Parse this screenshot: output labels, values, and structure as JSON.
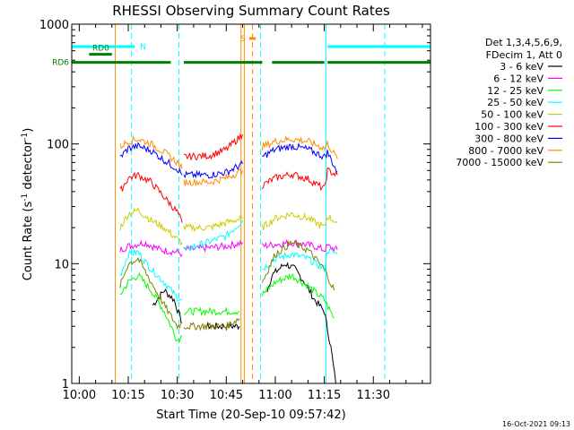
{
  "chart_data": {
    "type": "line",
    "title": "RHESSI Observing Summary Count Rates",
    "xlabel": "Start Time (20-Sep-10 09:57:42)",
    "ylabel": "Count Rate (s",
    "ylabel_sup": "-1",
    "ylabel_tail": " detector",
    "ylabel_sup2": "-1",
    "ylabel_close": ")",
    "yscale": "log",
    "ylim": [
      1,
      1000
    ],
    "xlim_minutes": [
      -2.3,
      107.5
    ],
    "x_ticks": [
      {
        "label": "10:00",
        "minute": 0
      },
      {
        "label": "10:15",
        "minute": 15
      },
      {
        "label": "10:30",
        "minute": 30
      },
      {
        "label": "10:45",
        "minute": 45
      },
      {
        "label": "11:00",
        "minute": 60
      },
      {
        "label": "11:15",
        "minute": 75
      },
      {
        "label": "11:30",
        "minute": 90
      }
    ],
    "y_ticks": [
      {
        "label": "1",
        "value": 1
      },
      {
        "label": "10",
        "value": 10
      },
      {
        "label": "100",
        "value": 100
      },
      {
        "label": "1000",
        "value": 1000
      }
    ],
    "legend_header": [
      "Det 1,3,4,5,6,9,",
      "FDecim 1, Att 0"
    ],
    "legend_position": "right",
    "series": [
      {
        "name": "3 - 6 keV",
        "color": "#000000",
        "segments": [
          [
            [
              22.5,
              4.5
            ],
            [
              26,
              6
            ],
            [
              29,
              5
            ],
            [
              31.5,
              3.2
            ]
          ],
          [
            [
              39,
              3
            ],
            [
              49,
              3
            ]
          ],
          [
            [
              57.5,
              6
            ],
            [
              59,
              8
            ],
            [
              63,
              10
            ],
            [
              66,
              9
            ],
            [
              69,
              7
            ],
            [
              72,
              5
            ],
            [
              75,
              4
            ],
            [
              77,
              2
            ],
            [
              78.5,
              1
            ]
          ]
        ]
      },
      {
        "name": "6 - 12 keV",
        "color": "#ff00ff",
        "segments": [
          [
            [
              12.5,
              13
            ],
            [
              15,
              14
            ],
            [
              20,
              15
            ],
            [
              25,
              13
            ],
            [
              30,
              12.5
            ],
            [
              31.5,
              12
            ]
          ],
          [
            [
              32,
              13
            ],
            [
              45,
              14
            ],
            [
              50,
              15
            ]
          ],
          [
            [
              56,
              14
            ],
            [
              60,
              14.5
            ],
            [
              66,
              15
            ],
            [
              72,
              14
            ],
            [
              75,
              13
            ],
            [
              76,
              14
            ],
            [
              79,
              13
            ]
          ]
        ]
      },
      {
        "name": "12 - 25 keV",
        "color": "#00ff00",
        "segments": [
          [
            [
              12.5,
              5.5
            ],
            [
              15,
              7
            ],
            [
              18,
              8
            ],
            [
              22,
              6
            ],
            [
              26,
              4
            ],
            [
              30,
              2.3
            ],
            [
              31.5,
              2.5
            ]
          ],
          [
            [
              32,
              4
            ],
            [
              45,
              4
            ],
            [
              49,
              4
            ]
          ],
          [
            [
              56,
              5.5
            ],
            [
              60,
              7
            ],
            [
              65,
              8
            ],
            [
              70,
              6.5
            ],
            [
              75,
              5
            ],
            [
              78,
              3.5
            ]
          ]
        ]
      },
      {
        "name": "25 - 50 keV",
        "color": "#00ffff",
        "segments": [
          [
            [
              12.5,
              8
            ],
            [
              15,
              12
            ],
            [
              18,
              12.5
            ],
            [
              22,
              9
            ],
            [
              26,
              7
            ],
            [
              30,
              5.2
            ],
            [
              31.5,
              5
            ]
          ],
          [
            [
              32,
              13
            ],
            [
              45,
              17
            ],
            [
              50,
              23
            ]
          ],
          [
            [
              56,
              9
            ],
            [
              60,
              11
            ],
            [
              65,
              12
            ],
            [
              70,
              11
            ],
            [
              75,
              9
            ],
            [
              76,
              13
            ],
            [
              79,
              12
            ]
          ]
        ]
      },
      {
        "name": "50 - 100 keV",
        "color": "#cccc00",
        "segments": [
          [
            [
              12.5,
              20
            ],
            [
              15,
              26
            ],
            [
              18,
              28
            ],
            [
              22,
              23
            ],
            [
              26,
              20
            ],
            [
              30,
              16
            ],
            [
              31.5,
              15
            ]
          ],
          [
            [
              32,
              20
            ],
            [
              40,
              20
            ],
            [
              45,
              22
            ],
            [
              50,
              24
            ]
          ],
          [
            [
              56,
              20
            ],
            [
              60,
              24
            ],
            [
              65,
              26
            ],
            [
              70,
              24
            ],
            [
              75,
              20
            ],
            [
              76,
              25
            ],
            [
              79,
              22
            ]
          ]
        ]
      },
      {
        "name": "100 - 300 keV",
        "color": "#ff0000",
        "segments": [
          [
            [
              12.5,
              40
            ],
            [
              15,
              52
            ],
            [
              18,
              55
            ],
            [
              22,
              48
            ],
            [
              26,
              36
            ],
            [
              30,
              27
            ],
            [
              31.5,
              22
            ]
          ],
          [
            [
              32,
              78
            ],
            [
              40,
              80
            ],
            [
              45,
              90
            ],
            [
              50,
              120
            ]
          ],
          [
            [
              56,
              45
            ],
            [
              60,
              52
            ],
            [
              65,
              56
            ],
            [
              70,
              51
            ],
            [
              75,
              42
            ],
            [
              76,
              60
            ],
            [
              79,
              55
            ]
          ]
        ]
      },
      {
        "name": "300 - 800 keV",
        "color": "#0000ff",
        "segments": [
          [
            [
              12.5,
              77
            ],
            [
              15,
              92
            ],
            [
              18,
              96
            ],
            [
              22,
              88
            ],
            [
              26,
              73
            ],
            [
              30,
              62
            ],
            [
              31.5,
              55
            ]
          ],
          [
            [
              32,
              55
            ],
            [
              40,
              55
            ],
            [
              45,
              58
            ],
            [
              50,
              68
            ]
          ],
          [
            [
              56,
              78
            ],
            [
              60,
              90
            ],
            [
              65,
              96
            ],
            [
              70,
              90
            ],
            [
              75,
              78
            ],
            [
              76,
              85
            ],
            [
              79,
              58
            ]
          ]
        ]
      },
      {
        "name": "800 - 7000 keV",
        "color": "#ff8c00",
        "segments": [
          [
            [
              12.5,
              95
            ],
            [
              15,
              105
            ],
            [
              18,
              110
            ],
            [
              22,
              100
            ],
            [
              26,
              85
            ],
            [
              30,
              70
            ],
            [
              31.5,
              62
            ]
          ],
          [
            [
              32,
              48
            ],
            [
              40,
              48
            ],
            [
              45,
              52
            ],
            [
              50,
              60
            ]
          ],
          [
            [
              56,
              95
            ],
            [
              60,
              105
            ],
            [
              65,
              110
            ],
            [
              70,
              105
            ],
            [
              75,
              92
            ],
            [
              76,
              100
            ],
            [
              79,
              75
            ]
          ]
        ]
      },
      {
        "name": "7000 - 15000 keV",
        "color": "#808000",
        "segments": [
          [
            [
              12.5,
              6.5
            ],
            [
              15,
              10
            ],
            [
              18,
              11
            ],
            [
              22,
              7
            ],
            [
              26,
              4.5
            ],
            [
              30,
              3
            ],
            [
              31.5,
              3.2
            ]
          ],
          [
            [
              32,
              3
            ],
            [
              45,
              3
            ],
            [
              49,
              3.5
            ]
          ],
          [
            [
              56,
              7
            ],
            [
              60,
              12
            ],
            [
              65,
              15
            ],
            [
              70,
              13
            ],
            [
              75,
              9
            ],
            [
              78,
              6
            ]
          ]
        ]
      }
    ],
    "bars": [
      {
        "label": "N",
        "color": "#00ffff",
        "y": 650,
        "segments": [
          [
            -2.3,
            17
          ],
          [
            76,
            107.5
          ]
        ]
      },
      {
        "label": "RD0",
        "color": "#008000",
        "y": 560,
        "segments": [
          [
            3,
            10
          ]
        ]
      },
      {
        "label": "RD6",
        "color": "#008000",
        "y": 480,
        "segments": [
          [
            -2.3,
            28
          ],
          [
            32,
            56
          ],
          [
            59,
            75
          ],
          [
            76,
            107.5
          ]
        ]
      },
      {
        "label": "S",
        "color": "#ff8c00",
        "y": 760,
        "segments": [
          [
            52,
            54
          ]
        ]
      }
    ],
    "vlines": [
      {
        "minute": -2.3,
        "color": "#00ffff",
        "style": "solid"
      },
      {
        "minute": 16,
        "color": "#00ffff",
        "style": "dashed"
      },
      {
        "minute": 30.5,
        "color": "#00ffff",
        "style": "dashed"
      },
      {
        "minute": 11,
        "color": "#ff8c00",
        "style": "solid"
      },
      {
        "minute": 49.5,
        "color": "#ff8c00",
        "style": "solid"
      },
      {
        "minute": 50.5,
        "color": "#ff8c00",
        "style": "solid"
      },
      {
        "minute": 53,
        "color": "#ff8c00",
        "style": "dashed"
      },
      {
        "minute": 55.5,
        "color": "#00ffff",
        "style": "dashed"
      },
      {
        "minute": 75.5,
        "color": "#00ffff",
        "style": "solid"
      },
      {
        "minute": 93.5,
        "color": "#00ffff",
        "style": "dashed"
      }
    ],
    "timestamp": "16-Oct-2021 09:13"
  }
}
